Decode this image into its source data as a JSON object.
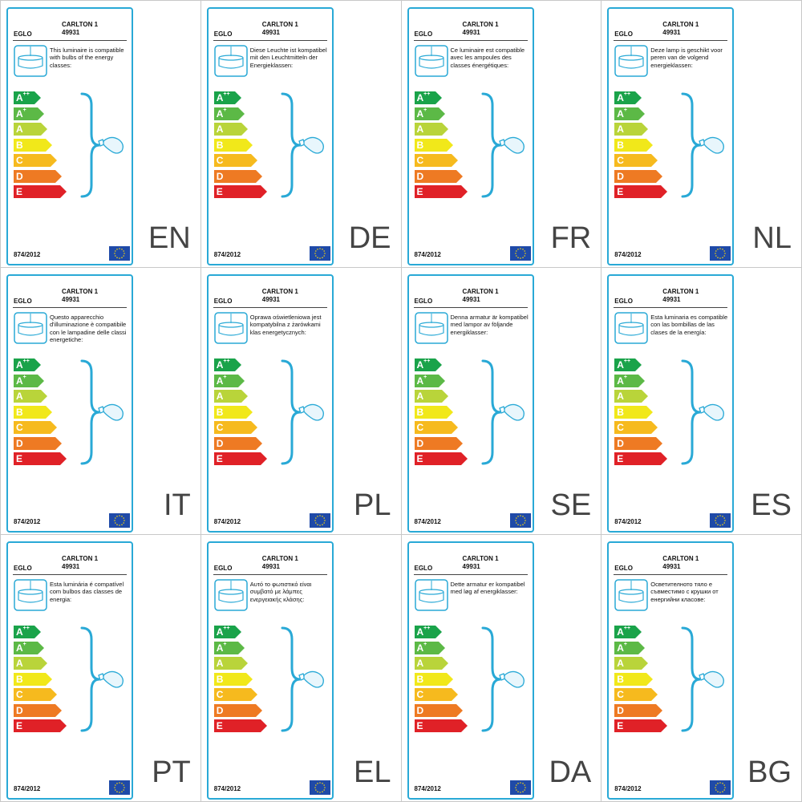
{
  "colors": {
    "frame": "#29a9d6",
    "class_a2": "#1aa34a",
    "class_a1": "#5cb946",
    "class_a": "#b9d43a",
    "class_b": "#f1e81a",
    "class_c": "#f6ba1e",
    "class_d": "#ee7a23",
    "class_e": "#e02127"
  },
  "energy_classes": [
    {
      "letter": "A",
      "sup": "++"
    },
    {
      "letter": "A",
      "sup": "+"
    },
    {
      "letter": "A",
      "sup": ""
    },
    {
      "letter": "B",
      "sup": ""
    },
    {
      "letter": "C",
      "sup": ""
    },
    {
      "letter": "D",
      "sup": ""
    },
    {
      "letter": "E",
      "sup": ""
    }
  ],
  "labels": [
    {
      "lang": "EN",
      "brand": "EGLO",
      "model": "CARLTON 1",
      "code": "49931",
      "regulation": "874/2012",
      "text": "This luminaire is compatible with bulbs of the energy classes:"
    },
    {
      "lang": "DE",
      "brand": "EGLO",
      "model": "CARLTON 1",
      "code": "49931",
      "regulation": "874/2012",
      "text": "Diese Leuchte ist kompatibel mit den Leuchtmitteln der Energieklassen:"
    },
    {
      "lang": "FR",
      "brand": "EGLO",
      "model": "CARLTON 1",
      "code": "49931",
      "regulation": "874/2012",
      "text": "Ce luminaire est compatible avec les ampoules des classes énergétiques:"
    },
    {
      "lang": "NL",
      "brand": "EGLO",
      "model": "CARLTON 1",
      "code": "49931",
      "regulation": "874/2012",
      "text": "Deze lamp is geschikt voor peren van de volgend energieklassen:"
    },
    {
      "lang": "IT",
      "brand": "EGLO",
      "model": "CARLTON 1",
      "code": "49931",
      "regulation": "874/2012",
      "text": "Questo apparecchio d'illuminazione è compatibile con le lampadine delle classi energetiche:"
    },
    {
      "lang": "PL",
      "brand": "EGLO",
      "model": "CARLTON 1",
      "code": "49931",
      "regulation": "874/2012",
      "text": "Oprawa oświetleniowa jest kompatybilna z żarówkami klas energetycznych:"
    },
    {
      "lang": "SE",
      "brand": "EGLO",
      "model": "CARLTON 1",
      "code": "49931",
      "regulation": "874/2012",
      "text": "Denna armatur är kompatibel med lampor av följande energiklasser:"
    },
    {
      "lang": "ES",
      "brand": "EGLO",
      "model": "CARLTON 1",
      "code": "49931",
      "regulation": "874/2012",
      "text": "Esta luminaria es compatible con las bombillas de las clases de la energía:"
    },
    {
      "lang": "PT",
      "brand": "EGLO",
      "model": "CARLTON 1",
      "code": "49931",
      "regulation": "874/2012",
      "text": "Esta luminária é compatível com bulbos das classes de energia:"
    },
    {
      "lang": "EL",
      "brand": "EGLO",
      "model": "CARLTON 1",
      "code": "49931",
      "regulation": "874/2012",
      "text": "Αυτό το φωτιστικό είναι συμβατό με λάμπες ενεργειακής κλάσης:"
    },
    {
      "lang": "DA",
      "brand": "EGLO",
      "model": "CARLTON 1",
      "code": "49931",
      "regulation": "874/2012",
      "text": "Dette armatur er kompatibel med løg af energiklasser:"
    },
    {
      "lang": "BG",
      "brand": "EGLO",
      "model": "CARLTON 1",
      "code": "49931",
      "regulation": "874/2012",
      "text": "Осветителното тяло е съвместимо с крушки от енергийни класове:"
    }
  ]
}
